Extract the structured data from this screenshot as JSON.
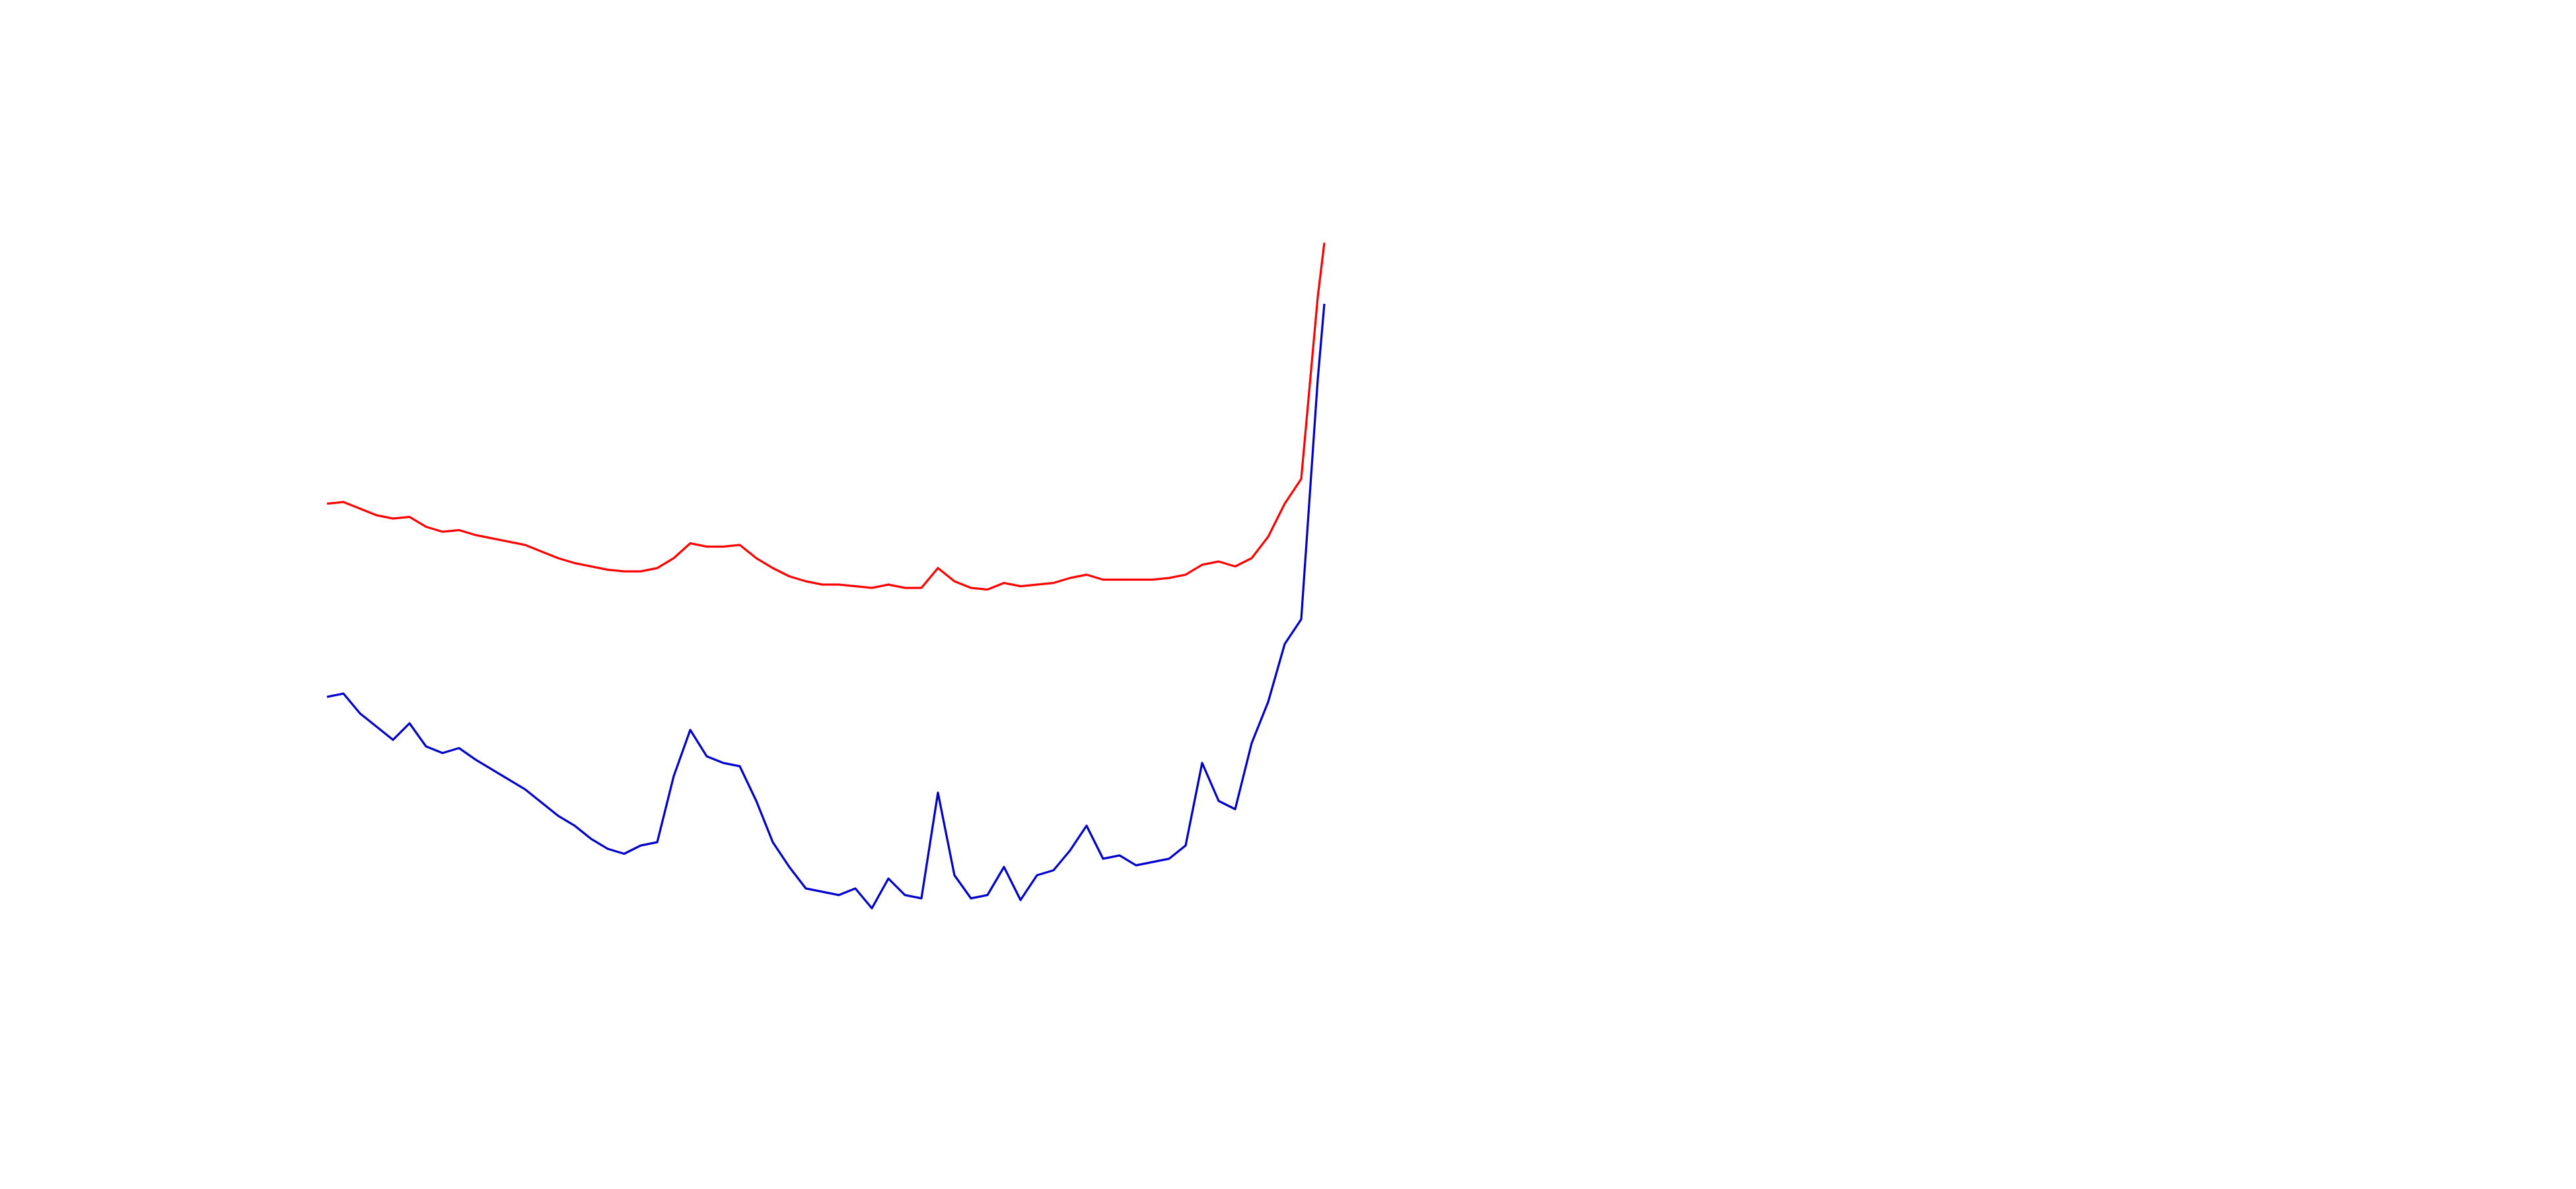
{
  "chart_data": {
    "type": "line",
    "x": [
      0,
      10,
      20,
      30,
      40,
      50,
      60,
      70,
      80,
      90,
      100,
      110,
      120,
      130,
      140,
      150,
      160,
      170,
      180,
      190,
      200,
      210,
      220,
      230,
      240,
      250,
      260,
      270,
      280,
      290,
      300,
      310,
      320,
      330,
      340,
      350,
      360,
      370,
      380,
      390,
      400,
      410,
      420,
      430,
      440,
      450,
      460,
      470,
      480,
      490,
      500,
      510,
      520,
      530,
      540,
      550,
      560,
      570,
      580,
      590,
      600,
      604
    ],
    "xlim": [
      0,
      604
    ],
    "ylim": [
      0,
      720
    ],
    "series": [
      {
        "color": "#ff0000",
        "values": [
          415,
          416,
          412,
          408,
          406,
          407,
          401,
          398,
          399,
          396,
          394,
          392,
          390,
          386,
          382,
          379,
          377,
          375,
          374,
          374,
          376,
          382,
          391,
          389,
          389,
          390,
          382,
          376,
          371,
          368,
          366,
          366,
          365,
          364,
          366,
          364,
          364,
          376,
          368,
          364,
          363,
          367,
          365,
          366,
          367,
          370,
          372,
          369,
          369,
          369,
          369,
          370,
          372,
          378,
          380,
          377,
          382,
          395,
          415,
          430,
          540,
          573
        ]
      },
      {
        "color": "#0000cc",
        "values": [
          298,
          300,
          288,
          280,
          272,
          282,
          268,
          264,
          267,
          260,
          254,
          248,
          242,
          234,
          226,
          220,
          212,
          206,
          203,
          208,
          210,
          250,
          278,
          262,
          258,
          256,
          235,
          210,
          195,
          182,
          180,
          178,
          182,
          170,
          188,
          178,
          176,
          240,
          190,
          176,
          178,
          195,
          175,
          190,
          193,
          205,
          220,
          200,
          202,
          196,
          198,
          200,
          208,
          258,
          235,
          230,
          270,
          295,
          330,
          345,
          490,
          536
        ]
      }
    ]
  }
}
